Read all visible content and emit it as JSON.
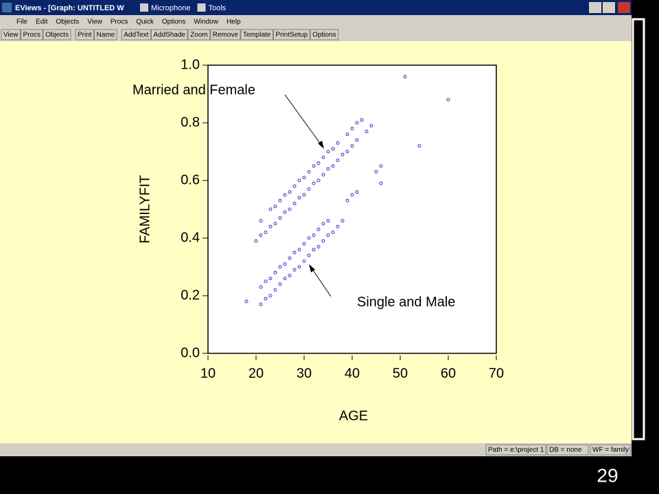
{
  "window": {
    "title": "EViews - [Graph: UNTITLED  W",
    "tray": [
      "Microphone",
      "Tools"
    ]
  },
  "menu": [
    "File",
    "Edit",
    "Objects",
    "View",
    "Procs",
    "Quick",
    "Options",
    "Window",
    "Help"
  ],
  "toolbar": [
    "View",
    "Procs",
    "Objects",
    "Print",
    "Name",
    "AddText",
    "AddShade",
    "Zoom",
    "Remove",
    "Template",
    "PrintSetup",
    "Options"
  ],
  "chart_data": {
    "type": "scatter",
    "xlabel": "AGE",
    "ylabel": "FAMILYFIT",
    "annotations": [
      "Married and Female",
      "Single and Male"
    ],
    "xlim": [
      10,
      70
    ],
    "xticks": [
      10,
      20,
      30,
      40,
      50,
      60,
      70
    ],
    "ylim": [
      0,
      1
    ],
    "yticks": [
      {
        "value": 0,
        "label": "0.0"
      },
      {
        "value": 0.2,
        "label": "0.2"
      },
      {
        "value": 0.4,
        "label": "0.4"
      },
      {
        "value": 0.6,
        "label": "0.6"
      },
      {
        "value": 0.8,
        "label": "0.8"
      },
      {
        "value": 1,
        "label": "1.0"
      }
    ],
    "x": [
      18,
      20,
      21,
      21,
      22,
      23,
      23,
      24,
      24,
      25,
      25,
      26,
      26,
      27,
      27,
      28,
      28,
      29,
      29,
      30,
      30,
      31,
      31,
      32,
      32,
      33,
      33,
      34,
      34,
      35,
      35,
      36,
      36,
      37,
      37,
      38,
      39,
      39,
      40,
      40,
      41,
      41,
      42,
      43,
      44,
      45,
      46,
      46,
      51,
      54,
      60,
      21,
      21,
      22,
      22,
      23,
      23,
      24,
      24,
      25,
      25,
      26,
      26,
      27,
      27,
      28,
      28,
      29,
      29,
      30,
      30,
      31,
      31,
      32,
      32,
      33,
      33,
      34,
      34,
      35,
      35,
      36,
      37,
      38,
      39,
      40,
      41
    ],
    "series": [
      {
        "color": "#3030c8",
        "values": [
          0.18,
          0.39,
          0.41,
          0.46,
          0.42,
          0.44,
          0.5,
          0.45,
          0.51,
          0.47,
          0.53,
          0.49,
          0.55,
          0.5,
          0.56,
          0.52,
          0.58,
          0.54,
          0.6,
          0.55,
          0.61,
          0.57,
          0.63,
          0.59,
          0.65,
          0.6,
          0.66,
          0.62,
          0.68,
          0.64,
          0.7,
          0.65,
          0.71,
          0.67,
          0.73,
          0.69,
          0.7,
          0.76,
          0.72,
          0.78,
          0.74,
          0.8,
          0.81,
          0.77,
          0.79,
          0.63,
          0.65,
          0.59,
          0.96,
          0.72,
          0.88,
          0.17,
          0.23,
          0.19,
          0.25,
          0.2,
          0.26,
          0.22,
          0.28,
          0.24,
          0.3,
          0.26,
          0.31,
          0.27,
          0.33,
          0.29,
          0.35,
          0.3,
          0.36,
          0.32,
          0.38,
          0.34,
          0.4,
          0.36,
          0.41,
          0.37,
          0.43,
          0.39,
          0.45,
          0.41,
          0.46,
          0.42,
          0.44,
          0.46,
          0.53,
          0.55,
          0.56
        ]
      }
    ]
  },
  "status": [
    "Path = e:\\project 1",
    "DB = none",
    "WF = family"
  ],
  "slide_number": "29"
}
